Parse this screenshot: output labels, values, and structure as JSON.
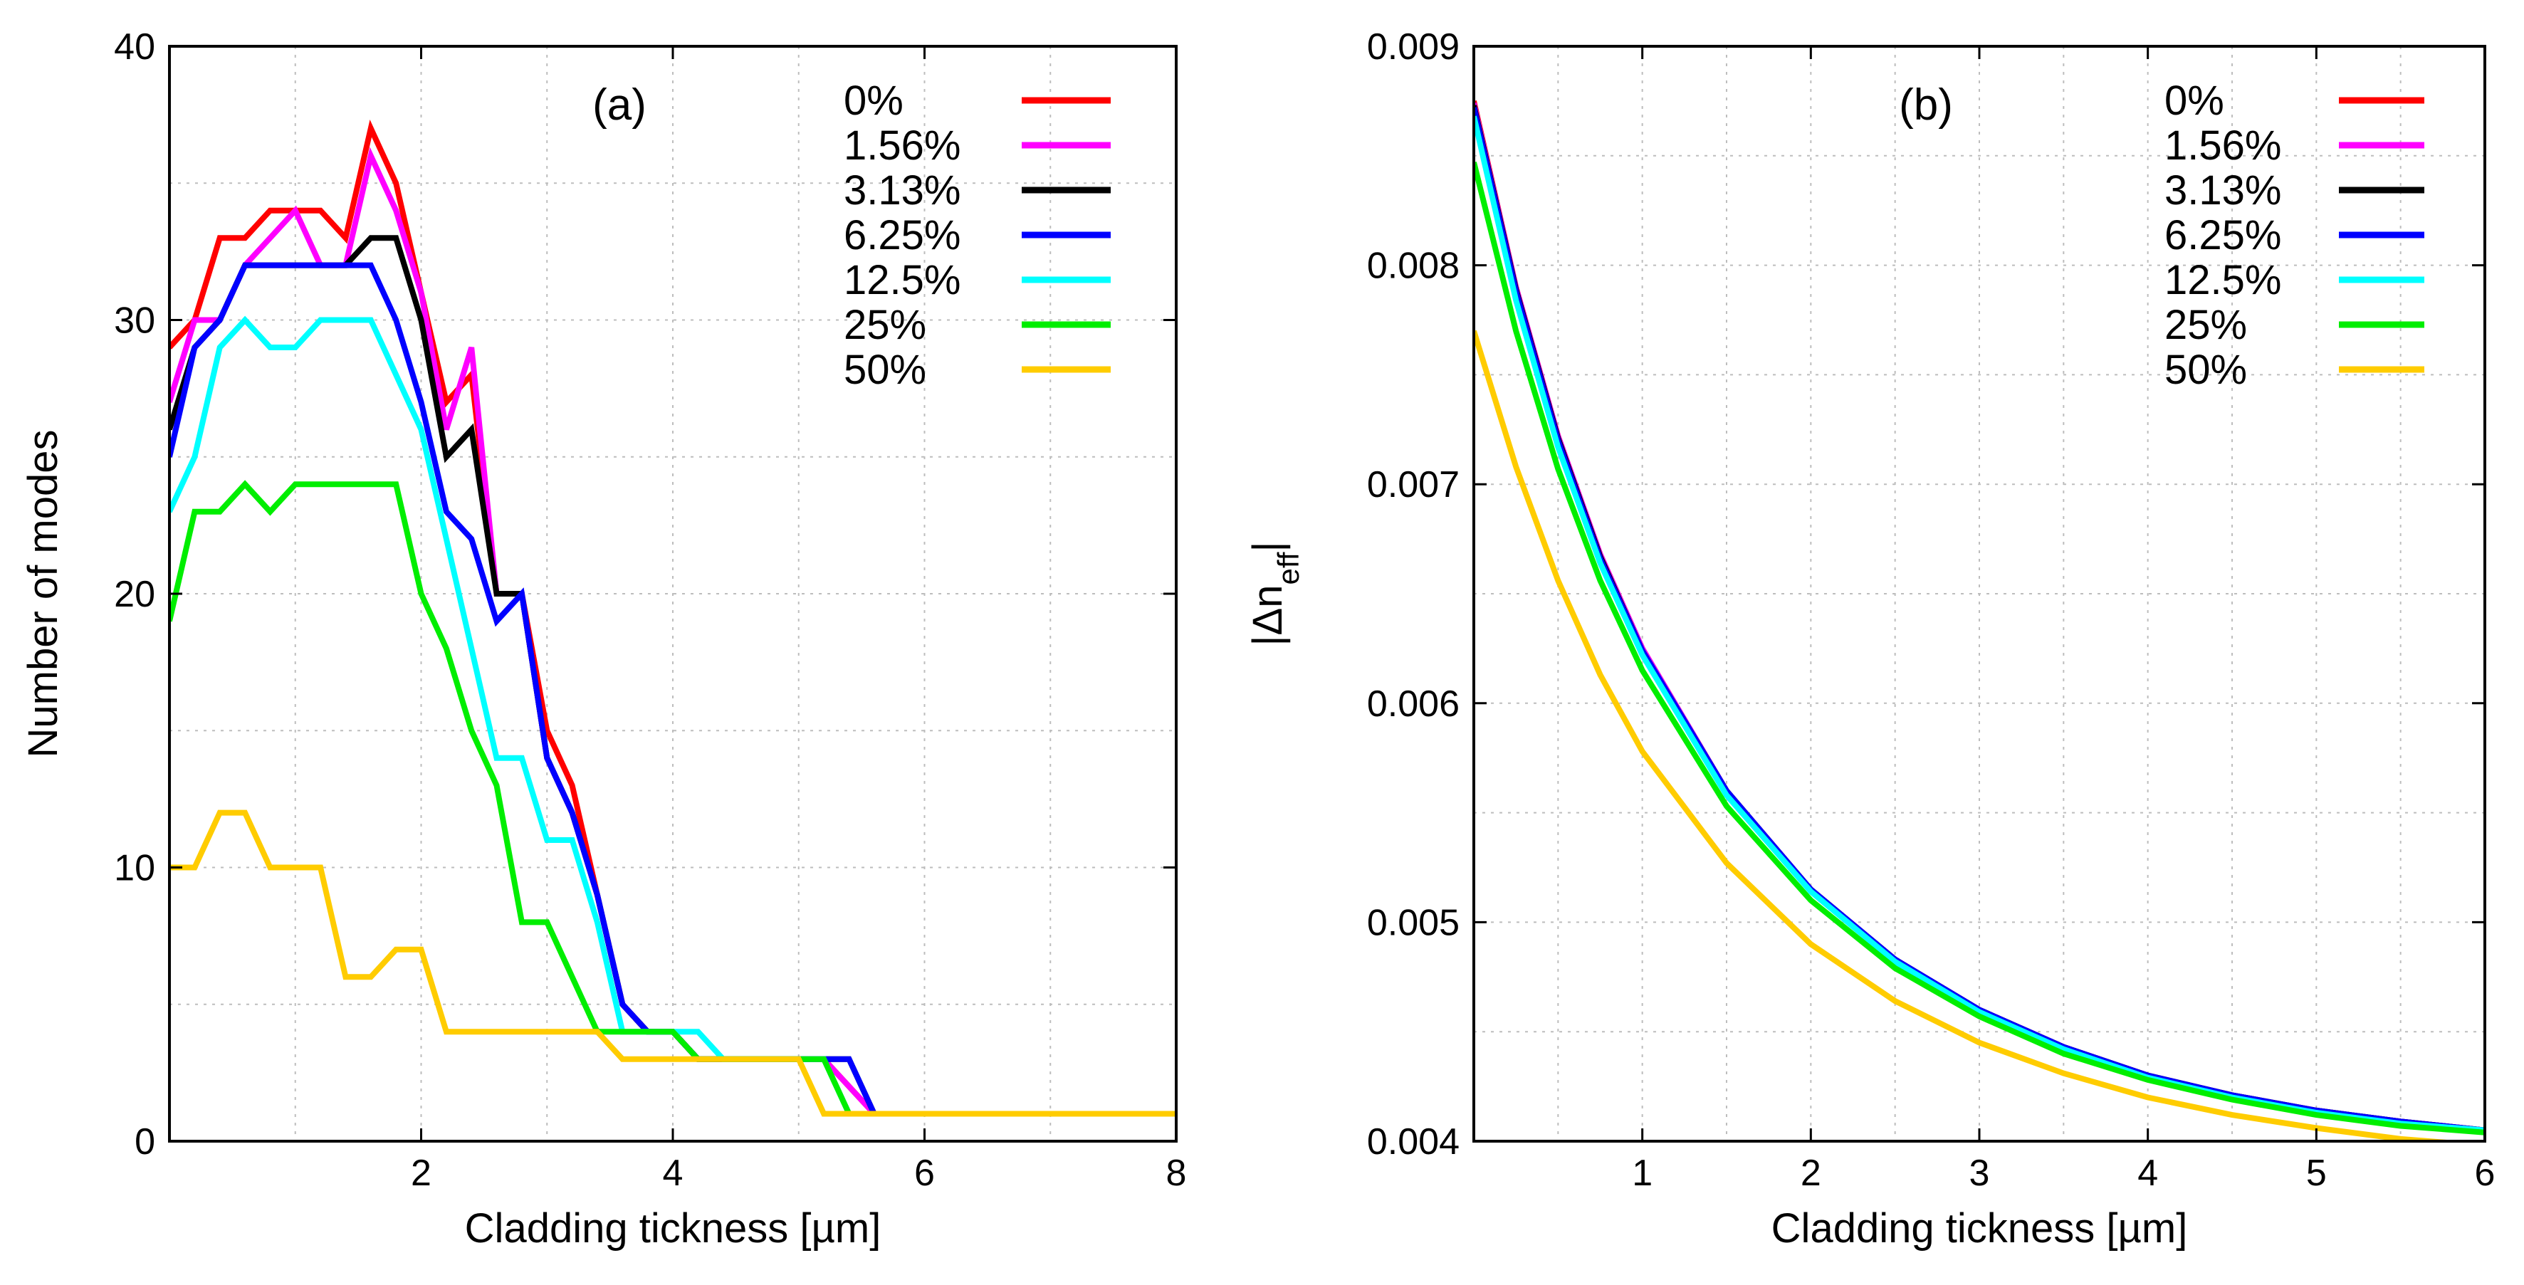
{
  "chart_data": [
    {
      "type": "line",
      "panel": "(a)",
      "xlabel": "Cladding tickness [µm]",
      "ylabel": "Number of modes",
      "xlim": [
        0,
        8
      ],
      "ylim": [
        0,
        40
      ],
      "xticks": [
        2,
        4,
        6,
        8
      ],
      "yticks": [
        0,
        10,
        20,
        30,
        40
      ],
      "grid": true,
      "legend_position": "top-right",
      "series": [
        {
          "name": "0%",
          "color": "#ff0000",
          "x": [
            0,
            0.2,
            0.4,
            0.6,
            0.8,
            1.0,
            1.2,
            1.4,
            1.6,
            1.8,
            2.0,
            2.2,
            2.4,
            2.6,
            2.8,
            3.0,
            3.2,
            3.4,
            3.6,
            3.8,
            4.0,
            4.2,
            4.4,
            5.0,
            5.2,
            5.6,
            6.0,
            8.0
          ],
          "y": [
            29,
            30,
            33,
            33,
            34,
            34,
            34,
            33,
            37,
            35,
            31,
            27,
            28,
            20,
            20,
            15,
            13,
            9,
            5,
            4,
            4,
            3,
            3,
            3,
            3,
            1,
            1,
            1
          ]
        },
        {
          "name": "1.56%",
          "color": "#ff00ff",
          "x": [
            0,
            0.2,
            0.4,
            0.6,
            0.8,
            1.0,
            1.2,
            1.4,
            1.6,
            1.8,
            2.0,
            2.2,
            2.4,
            2.6,
            2.8,
            3.0,
            3.2,
            3.4,
            3.6,
            3.8,
            4.0,
            4.2,
            4.4,
            5.0,
            5.2,
            5.6,
            6.0,
            8.0
          ],
          "y": [
            27,
            30,
            30,
            32,
            33,
            34,
            32,
            32,
            36,
            34,
            31,
            26,
            29,
            20,
            20,
            14,
            12,
            9,
            5,
            4,
            4,
            3,
            3,
            3,
            3,
            1,
            1,
            1
          ]
        },
        {
          "name": "3.13%",
          "color": "#000000",
          "x": [
            0,
            0.2,
            0.4,
            0.6,
            0.8,
            1.0,
            1.2,
            1.4,
            1.6,
            1.8,
            2.0,
            2.2,
            2.4,
            2.6,
            2.8,
            3.0,
            3.2,
            3.4,
            3.6,
            3.8,
            4.0,
            4.2,
            4.4,
            5.0,
            5.4,
            5.6,
            6.0,
            8.0
          ],
          "y": [
            26,
            29,
            30,
            32,
            32,
            32,
            32,
            32,
            33,
            33,
            30,
            25,
            26,
            20,
            20,
            14,
            12,
            9,
            5,
            4,
            4,
            3,
            3,
            3,
            3,
            1,
            1,
            1
          ]
        },
        {
          "name": "6.25%",
          "color": "#0000ff",
          "x": [
            0,
            0.2,
            0.4,
            0.6,
            0.8,
            1.0,
            1.2,
            1.4,
            1.6,
            1.8,
            2.0,
            2.2,
            2.4,
            2.6,
            2.8,
            3.0,
            3.2,
            3.4,
            3.6,
            3.8,
            4.0,
            4.2,
            4.4,
            5.0,
            5.4,
            5.6,
            6.0,
            8.0
          ],
          "y": [
            25,
            29,
            30,
            32,
            32,
            32,
            32,
            32,
            32,
            30,
            27,
            23,
            22,
            19,
            20,
            14,
            12,
            9,
            5,
            4,
            4,
            3,
            3,
            3,
            3,
            1,
            1,
            1
          ]
        },
        {
          "name": "12.5%",
          "color": "#00ffff",
          "x": [
            0,
            0.2,
            0.4,
            0.6,
            0.8,
            1.0,
            1.2,
            1.4,
            1.6,
            1.8,
            2.0,
            2.2,
            2.4,
            2.6,
            2.8,
            3.0,
            3.2,
            3.4,
            3.6,
            3.8,
            4.0,
            4.2,
            4.4,
            5.0,
            5.2,
            5.4,
            6.0,
            8.0
          ],
          "y": [
            23,
            25,
            29,
            30,
            29,
            29,
            30,
            30,
            30,
            28,
            26,
            22,
            18,
            14,
            14,
            11,
            11,
            8,
            4,
            4,
            4,
            4,
            3,
            3,
            3,
            1,
            1,
            1
          ]
        },
        {
          "name": "25%",
          "color": "#00ee00",
          "x": [
            0,
            0.2,
            0.4,
            0.6,
            0.8,
            1.0,
            1.2,
            1.4,
            1.6,
            1.8,
            2.0,
            2.2,
            2.4,
            2.6,
            2.8,
            3.0,
            3.2,
            3.4,
            3.6,
            3.8,
            4.0,
            4.2,
            5.0,
            5.2,
            5.4,
            6.0,
            8.0
          ],
          "y": [
            19,
            23,
            23,
            24,
            23,
            24,
            24,
            24,
            24,
            24,
            20,
            18,
            15,
            13,
            8,
            8,
            6,
            4,
            4,
            4,
            4,
            3,
            3,
            3,
            1,
            1,
            1
          ]
        },
        {
          "name": "50%",
          "color": "#ffcc00",
          "x": [
            0,
            0.2,
            0.4,
            0.6,
            0.8,
            1.0,
            1.2,
            1.4,
            1.6,
            1.8,
            2.0,
            2.2,
            2.4,
            2.6,
            2.8,
            3.0,
            3.2,
            3.4,
            3.6,
            3.8,
            4.0,
            4.2,
            5.0,
            5.2,
            6.0,
            8.0
          ],
          "y": [
            10,
            10,
            12,
            12,
            10,
            10,
            10,
            6,
            6,
            7,
            7,
            4,
            4,
            4,
            4,
            4,
            4,
            4,
            3,
            3,
            3,
            3,
            3,
            1,
            1,
            1
          ]
        }
      ]
    },
    {
      "type": "line",
      "panel": "(b)",
      "xlabel": "Cladding tickness [µm]",
      "ylabel_main": "|Δn",
      "ylabel_sub": "eff",
      "ylabel_end": "|",
      "xlim": [
        0,
        6
      ],
      "ylim": [
        0.004,
        0.009
      ],
      "xticks": [
        1,
        2,
        3,
        4,
        5,
        6
      ],
      "yticks": [
        "0.004",
        "0.005",
        "0.006",
        "0.007",
        "0.008",
        "0.009"
      ],
      "ytick_values": [
        0.004,
        0.005,
        0.006,
        0.007,
        0.008,
        0.009
      ],
      "grid": true,
      "legend_position": "top-right",
      "series": [
        {
          "name": "0%",
          "color": "#ff0000",
          "x": [
            0,
            0.25,
            0.5,
            0.75,
            1,
            1.5,
            2,
            2.5,
            3,
            3.5,
            4,
            4.5,
            5,
            5.5,
            6
          ],
          "y": [
            0.00875,
            0.0079,
            0.00722,
            0.00668,
            0.00625,
            0.0056,
            0.00515,
            0.00483,
            0.0046,
            0.00443,
            0.0043,
            0.00421,
            0.00414,
            0.00409,
            0.00405
          ]
        },
        {
          "name": "1.56%",
          "color": "#ff00ff",
          "x": [
            0,
            0.25,
            0.5,
            0.75,
            1,
            1.5,
            2,
            2.5,
            3,
            3.5,
            4,
            4.5,
            5,
            5.5,
            6
          ],
          "y": [
            0.00874,
            0.0079,
            0.00722,
            0.00668,
            0.00625,
            0.0056,
            0.00515,
            0.00483,
            0.0046,
            0.00443,
            0.0043,
            0.00421,
            0.00414,
            0.00409,
            0.00405
          ]
        },
        {
          "name": "3.13%",
          "color": "#000000",
          "x": [
            0,
            0.25,
            0.5,
            0.75,
            1,
            1.5,
            2,
            2.5,
            3,
            3.5,
            4,
            4.5,
            5,
            5.5,
            6
          ],
          "y": [
            0.00873,
            0.00789,
            0.00721,
            0.00667,
            0.00624,
            0.0056,
            0.00515,
            0.00483,
            0.0046,
            0.00443,
            0.0043,
            0.00421,
            0.00414,
            0.00409,
            0.00405
          ]
        },
        {
          "name": "6.25%",
          "color": "#0000ff",
          "x": [
            0,
            0.25,
            0.5,
            0.75,
            1,
            1.5,
            2,
            2.5,
            3,
            3.5,
            4,
            4.5,
            5,
            5.5,
            6
          ],
          "y": [
            0.00872,
            0.00788,
            0.0072,
            0.00666,
            0.00624,
            0.0056,
            0.00515,
            0.00483,
            0.0046,
            0.00443,
            0.0043,
            0.00421,
            0.00414,
            0.00409,
            0.00405
          ]
        },
        {
          "name": "12.5%",
          "color": "#00ffff",
          "x": [
            0,
            0.25,
            0.5,
            0.75,
            1,
            1.5,
            2,
            2.5,
            3,
            3.5,
            4,
            4.5,
            5,
            5.5,
            6
          ],
          "y": [
            0.00868,
            0.00784,
            0.00717,
            0.00664,
            0.00622,
            0.00558,
            0.00514,
            0.00482,
            0.00459,
            0.00442,
            0.00429,
            0.0042,
            0.00413,
            0.00408,
            0.00405
          ]
        },
        {
          "name": "25%",
          "color": "#00ee00",
          "x": [
            0,
            0.25,
            0.5,
            0.75,
            1,
            1.5,
            2,
            2.5,
            3,
            3.5,
            4,
            4.5,
            5,
            5.5,
            6
          ],
          "y": [
            0.00847,
            0.0077,
            0.00707,
            0.00656,
            0.00615,
            0.00553,
            0.0051,
            0.00479,
            0.00457,
            0.0044,
            0.00428,
            0.00419,
            0.00412,
            0.00407,
            0.00404
          ]
        },
        {
          "name": "50%",
          "color": "#ffcc00",
          "x": [
            0,
            0.25,
            0.5,
            0.75,
            1,
            1.5,
            2,
            2.5,
            3,
            3.5,
            4,
            4.5,
            5,
            5.5,
            6
          ],
          "y": [
            0.0077,
            0.00708,
            0.00656,
            0.00613,
            0.00578,
            0.00527,
            0.0049,
            0.00464,
            0.00445,
            0.00431,
            0.0042,
            0.00412,
            0.00406,
            0.00401,
            0.00398
          ]
        }
      ]
    }
  ]
}
